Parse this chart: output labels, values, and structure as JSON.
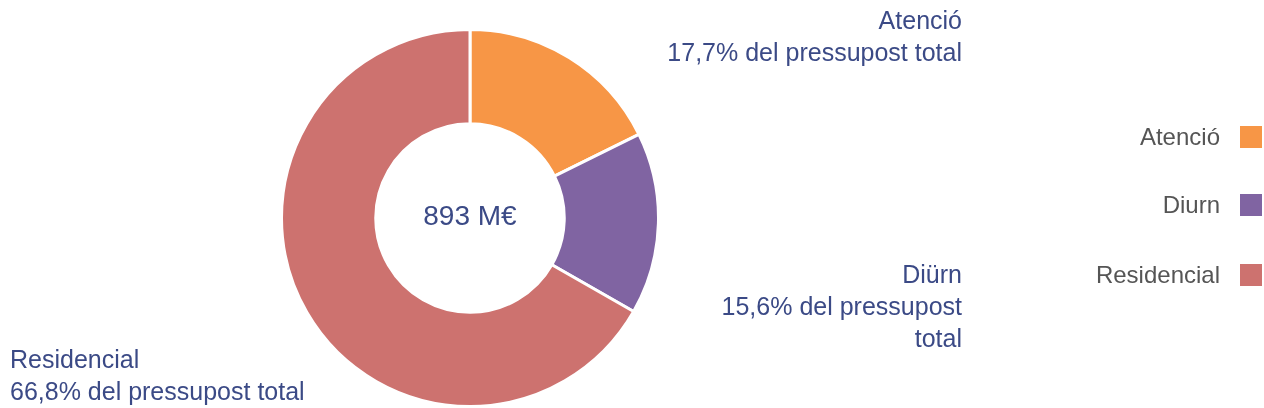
{
  "chart_data": {
    "type": "donut",
    "categories": [
      "Atenció",
      "Diurn",
      "Residencial"
    ],
    "values": [
      17.7,
      15.6,
      66.8
    ],
    "colors": [
      "#f79646",
      "#8064a2",
      "#cd726f"
    ],
    "legend": "right",
    "annotations": [
      "Atenció\n17,7% del pressupost total",
      "Diürn\n15,6% del pressupost\ntotal",
      "Residencial\n66,8% del pressupost total",
      "893 M€"
    ]
  }
}
